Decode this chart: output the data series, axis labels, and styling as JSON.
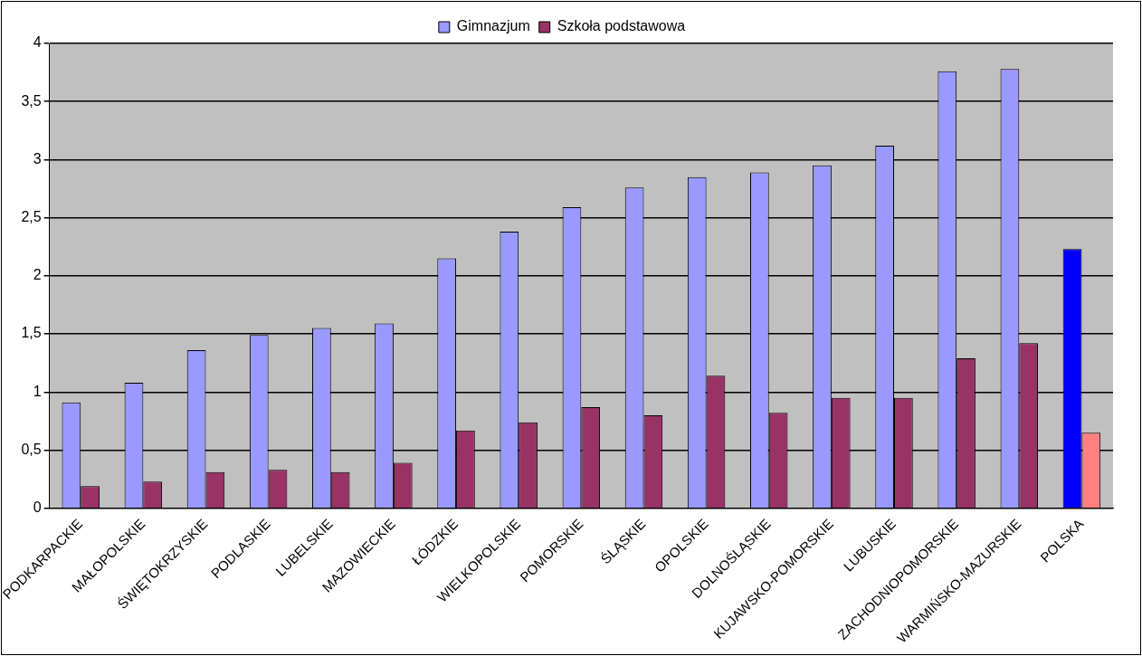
{
  "chart_data": {
    "type": "bar",
    "categories": [
      "PODKARPACKIE",
      "MAŁOPOLSKIE",
      "ŚWIĘTOKRZYSKIE",
      "PODLASKIE",
      "LUBELSKIE",
      "MAZOWIECKIE",
      "ŁÓDZKIE",
      "WIELKOPOLSKIE",
      "POMORSKIE",
      "ŚLĄSKIE",
      "OPOLSKIE",
      "DOLNOŚLĄSKIE",
      "KUJAWSKO-POMORSKIE",
      "LUBUSKIE",
      "ZACHODNIOPOMORSKIE",
      "WARMIŃSKO-MAZURSKIE",
      "POLSKA"
    ],
    "series": [
      {
        "name": "Gimnazjum",
        "color": "#9999ff",
        "colors": [
          "#9999ff",
          "#9999ff",
          "#9999ff",
          "#9999ff",
          "#9999ff",
          "#9999ff",
          "#9999ff",
          "#9999ff",
          "#9999ff",
          "#9999ff",
          "#9999ff",
          "#9999ff",
          "#9999ff",
          "#9999ff",
          "#9999ff",
          "#9999ff",
          "#0000ff"
        ],
        "values": [
          0.91,
          1.08,
          1.36,
          1.49,
          1.55,
          1.59,
          2.15,
          2.38,
          2.59,
          2.76,
          2.85,
          2.89,
          2.95,
          3.12,
          3.76,
          3.78,
          2.23
        ]
      },
      {
        "name": "Szkoła podstawowa",
        "color": "#993366",
        "colors": [
          "#993366",
          "#993366",
          "#993366",
          "#993366",
          "#993366",
          "#993366",
          "#993366",
          "#993366",
          "#993366",
          "#993366",
          "#993366",
          "#993366",
          "#993366",
          "#993366",
          "#993366",
          "#993366",
          "#ff8080"
        ],
        "values": [
          0.19,
          0.23,
          0.31,
          0.33,
          0.31,
          0.39,
          0.67,
          0.74,
          0.87,
          0.8,
          1.14,
          0.82,
          0.95,
          0.95,
          1.29,
          1.42,
          0.65
        ]
      }
    ],
    "ylim": [
      0,
      4
    ],
    "yticks": [
      0,
      {
        "value": 0.5,
        "label": "0,5"
      },
      1,
      {
        "value": 1.5,
        "label": "1,5"
      },
      2,
      {
        "value": 2.5,
        "label": "2,5"
      },
      3,
      {
        "value": 3.5,
        "label": "3,5"
      },
      4
    ],
    "grid": "y",
    "legend": "top"
  }
}
